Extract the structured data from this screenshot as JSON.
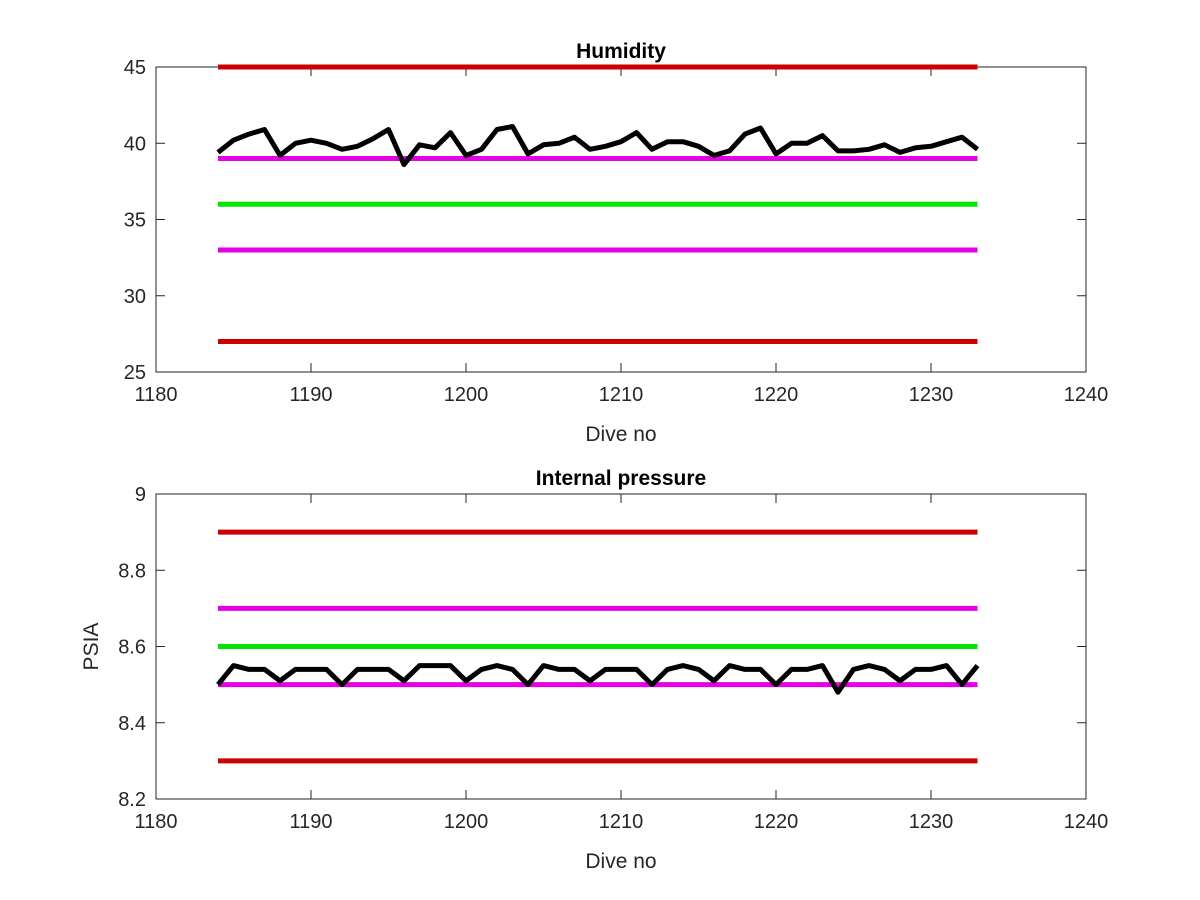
{
  "chart_data": [
    {
      "type": "line",
      "title": "Humidity",
      "xlabel": "Dive no",
      "ylabel": "",
      "xlim": [
        1180,
        1240
      ],
      "ylim": [
        25,
        45
      ],
      "xticks": [
        1180,
        1190,
        1200,
        1210,
        1220,
        1230,
        1240
      ],
      "yticks": [
        25,
        30,
        35,
        40,
        45
      ],
      "grid": false,
      "reference_lines": [
        {
          "y": 45,
          "x_range": [
            1184,
            1233
          ],
          "color": "#cc0000"
        },
        {
          "y": 39,
          "x_range": [
            1184,
            1233
          ],
          "color": "#e600e6"
        },
        {
          "y": 36,
          "x_range": [
            1184,
            1233
          ],
          "color": "#00e600"
        },
        {
          "y": 33,
          "x_range": [
            1184,
            1233
          ],
          "color": "#e600e6"
        },
        {
          "y": 27,
          "x_range": [
            1184,
            1233
          ],
          "color": "#cc0000"
        }
      ],
      "series": [
        {
          "color": "#000000",
          "x": [
            1184,
            1185,
            1186,
            1187,
            1188,
            1189,
            1190,
            1191,
            1192,
            1193,
            1194,
            1195,
            1196,
            1197,
            1198,
            1199,
            1200,
            1201,
            1202,
            1203,
            1204,
            1205,
            1206,
            1207,
            1208,
            1209,
            1210,
            1211,
            1212,
            1213,
            1214,
            1215,
            1216,
            1217,
            1218,
            1219,
            1220,
            1221,
            1222,
            1223,
            1224,
            1225,
            1226,
            1227,
            1228,
            1229,
            1230,
            1231,
            1232,
            1233
          ],
          "values": [
            39.4,
            40.2,
            40.6,
            40.9,
            39.2,
            40.0,
            40.2,
            40.0,
            39.6,
            39.8,
            40.3,
            40.9,
            38.6,
            39.9,
            39.7,
            40.7,
            39.2,
            39.6,
            40.9,
            41.1,
            39.3,
            39.9,
            40.0,
            40.4,
            39.6,
            39.8,
            40.1,
            40.7,
            39.6,
            40.1,
            40.1,
            39.8,
            39.2,
            39.5,
            40.6,
            41.0,
            39.3,
            40.0,
            40.0,
            40.5,
            39.5,
            39.5,
            39.6,
            39.9,
            39.4,
            39.7,
            39.8,
            40.1,
            40.4,
            39.6
          ]
        }
      ]
    },
    {
      "type": "line",
      "title": "Internal pressure",
      "xlabel": "Dive no",
      "ylabel": "PSIA",
      "xlim": [
        1180,
        1240
      ],
      "ylim": [
        8.2,
        9.0
      ],
      "xticks": [
        1180,
        1190,
        1200,
        1210,
        1220,
        1230,
        1240
      ],
      "yticks": [
        8.2,
        8.4,
        8.6,
        8.8,
        9
      ],
      "grid": false,
      "reference_lines": [
        {
          "y": 8.9,
          "x_range": [
            1184,
            1233
          ],
          "color": "#cc0000"
        },
        {
          "y": 8.7,
          "x_range": [
            1184,
            1233
          ],
          "color": "#e600e6"
        },
        {
          "y": 8.6,
          "x_range": [
            1184,
            1233
          ],
          "color": "#00e600"
        },
        {
          "y": 8.5,
          "x_range": [
            1184,
            1233
          ],
          "color": "#e600e6"
        },
        {
          "y": 8.3,
          "x_range": [
            1184,
            1233
          ],
          "color": "#cc0000"
        }
      ],
      "series": [
        {
          "color": "#000000",
          "x": [
            1184,
            1185,
            1186,
            1187,
            1188,
            1189,
            1190,
            1191,
            1192,
            1193,
            1194,
            1195,
            1196,
            1197,
            1198,
            1199,
            1200,
            1201,
            1202,
            1203,
            1204,
            1205,
            1206,
            1207,
            1208,
            1209,
            1210,
            1211,
            1212,
            1213,
            1214,
            1215,
            1216,
            1217,
            1218,
            1219,
            1220,
            1221,
            1222,
            1223,
            1224,
            1225,
            1226,
            1227,
            1228,
            1229,
            1230,
            1231,
            1232,
            1233
          ],
          "values": [
            8.5,
            8.55,
            8.54,
            8.54,
            8.51,
            8.54,
            8.54,
            8.54,
            8.5,
            8.54,
            8.54,
            8.54,
            8.51,
            8.55,
            8.55,
            8.55,
            8.51,
            8.54,
            8.55,
            8.54,
            8.5,
            8.55,
            8.54,
            8.54,
            8.51,
            8.54,
            8.54,
            8.54,
            8.5,
            8.54,
            8.55,
            8.54,
            8.51,
            8.55,
            8.54,
            8.54,
            8.5,
            8.54,
            8.54,
            8.55,
            8.48,
            8.54,
            8.55,
            8.54,
            8.51,
            8.54,
            8.54,
            8.55,
            8.5,
            8.55
          ]
        }
      ]
    }
  ]
}
